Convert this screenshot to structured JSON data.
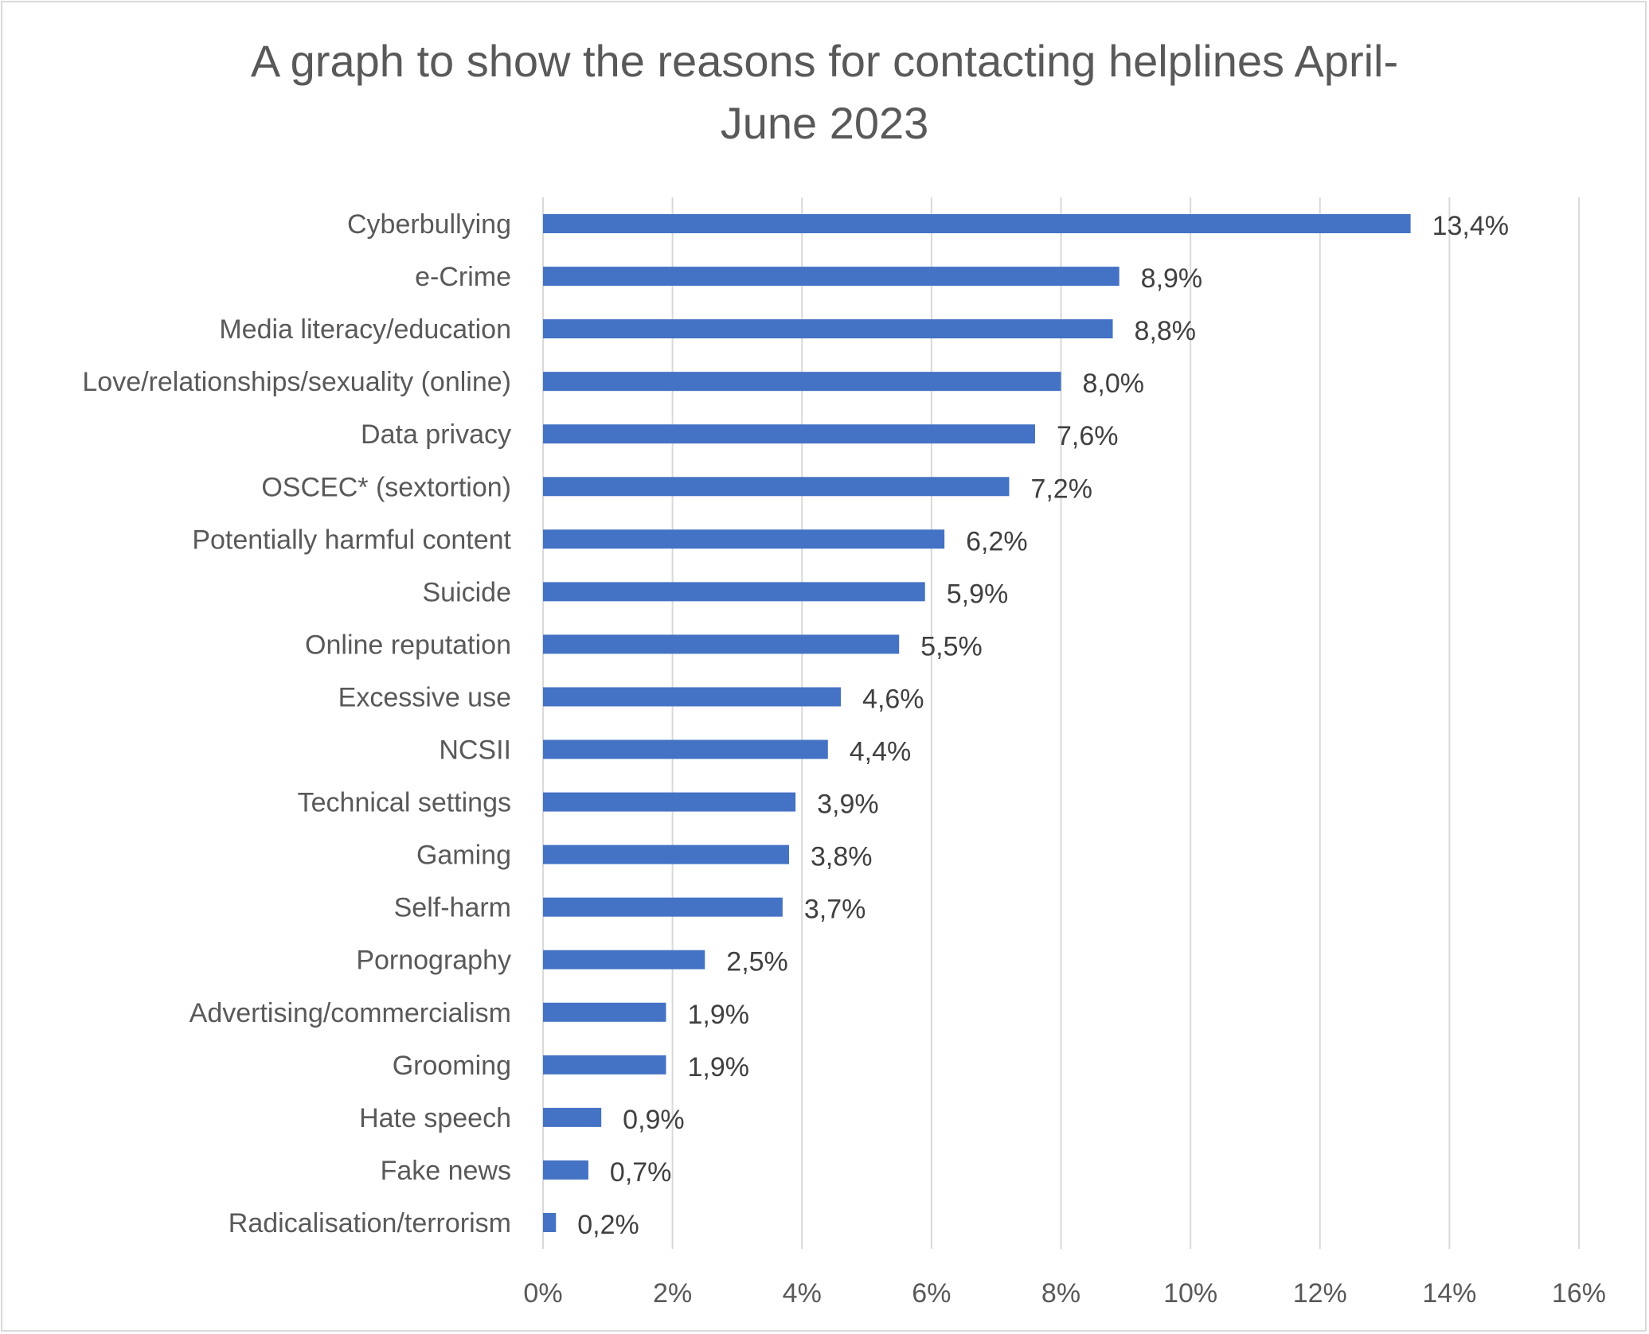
{
  "chart_data": {
    "type": "bar",
    "orientation": "horizontal",
    "title_line1": "A graph to show the reasons for contacting helplines April-",
    "title_line2": "June 2023",
    "categories": [
      "Cyberbullying",
      "e-Crime",
      "Media literacy/education",
      "Love/relationships/sexuality (online)",
      "Data privacy",
      "OSCEC* (sextortion)",
      "Potentially harmful content",
      "Suicide",
      "Online reputation",
      "Excessive use",
      "NCSII",
      "Technical settings",
      "Gaming",
      "Self-harm",
      "Pornography",
      "Advertising/commercialism",
      "Grooming",
      "Hate speech",
      "Fake news",
      "Radicalisation/terrorism"
    ],
    "values": [
      13.4,
      8.9,
      8.8,
      8.0,
      7.6,
      7.2,
      6.2,
      5.9,
      5.5,
      4.6,
      4.4,
      3.9,
      3.8,
      3.7,
      2.5,
      1.9,
      1.9,
      0.9,
      0.7,
      0.2
    ],
    "value_labels": [
      "13,4%",
      "8,9%",
      "8,8%",
      "8,0%",
      "7,6%",
      "7,2%",
      "6,2%",
      "5,9%",
      "5,5%",
      "4,6%",
      "4,4%",
      "3,9%",
      "3,8%",
      "3,7%",
      "2,5%",
      "1,9%",
      "1,9%",
      "0,9%",
      "0,7%",
      "0,2%"
    ],
    "x_ticks": [
      0,
      2,
      4,
      6,
      8,
      10,
      12,
      14,
      16
    ],
    "x_tick_labels": [
      "0%",
      "2%",
      "4%",
      "6%",
      "8%",
      "10%",
      "12%",
      "14%",
      "16%"
    ],
    "xlim": [
      0,
      16
    ],
    "xlabel": "",
    "ylabel": "",
    "grid": "vertical",
    "legend": "none",
    "bar_color": "#4472c4",
    "grid_color": "#d9d9d9"
  }
}
